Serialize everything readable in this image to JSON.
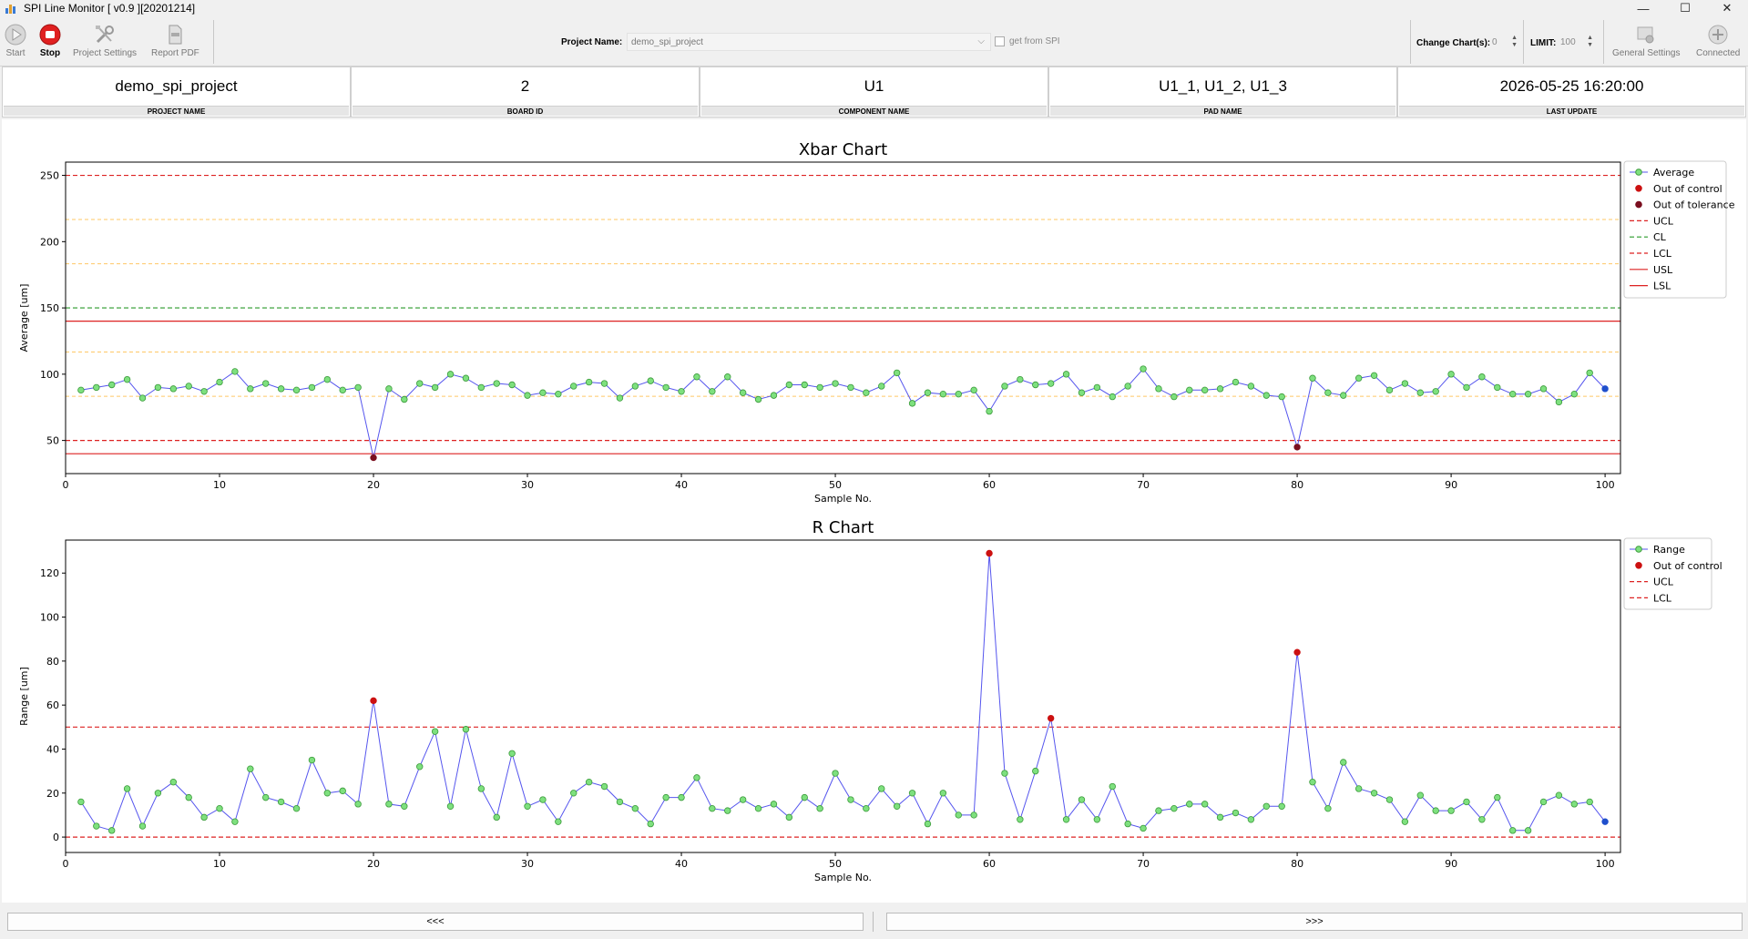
{
  "window": {
    "title": "SPI Line Monitor [ v0.9 ][20201214]",
    "controls": [
      "—",
      "☐",
      "✕"
    ]
  },
  "toolbar": {
    "start_label": "Start",
    "stop_label": "Stop",
    "project_settings_label": "Project Settings",
    "report_pdf_label": "Report PDF",
    "project_name_label": "Project Name:",
    "project_name_value": "demo_spi_project",
    "get_from_spi_label": "get from SPI",
    "change_charts_label": "Change Chart(s):",
    "change_charts_value": "0",
    "limit_label": "LIMIT:",
    "limit_value": "100",
    "general_settings_label": "General Settings",
    "connected_label": "Connected"
  },
  "info": [
    {
      "value": "demo_spi_project",
      "label": "PROJECT NAME"
    },
    {
      "value": "2",
      "label": "BOARD ID"
    },
    {
      "value": "U1",
      "label": "COMPONENT NAME"
    },
    {
      "value": "U1_1, U1_2, U1_3",
      "label": "PAD NAME"
    },
    {
      "value": "2026-05-25 16:20:00",
      "label": "LAST UPDATE"
    }
  ],
  "footer": {
    "prev_label": "<<<",
    "next_label": ">>>"
  },
  "colors": {
    "series_line": "#5555ee",
    "point_fill": "#7ee07e",
    "point_edge": "#3a9a3a",
    "out_of_control": "#cc1111",
    "out_of_tolerance": "#7a0f1f",
    "latest_point": "#1f4fcc",
    "control_limit": "#dd2222",
    "center_line": "#2a9a2a",
    "spec_limit": "#dd2222",
    "zone_line": "#ffc866"
  },
  "chart_data": [
    {
      "type": "line",
      "title": "Xbar Chart",
      "xlabel": "Sample No.",
      "ylabel": "Average [um]",
      "xlim": [
        0,
        101
      ],
      "ylim": [
        25,
        260
      ],
      "x_ticks": [
        0,
        10,
        20,
        30,
        40,
        50,
        60,
        70,
        80,
        90,
        100
      ],
      "y_ticks": [
        50,
        100,
        150,
        200,
        250
      ],
      "legend_position": "outside-right",
      "legend": [
        "Average",
        "Out of control",
        "Out of tolerance",
        "UCL",
        "CL",
        "LCL",
        "USL",
        "LSL"
      ],
      "lines": {
        "UCL": 250,
        "CL": 150,
        "LCL": 50,
        "USL": 140,
        "LSL": 40
      },
      "zones": [
        216.7,
        183.3,
        116.7,
        83.3
      ],
      "x": [
        1,
        2,
        3,
        4,
        5,
        6,
        7,
        8,
        9,
        10,
        11,
        12,
        13,
        14,
        15,
        16,
        17,
        18,
        19,
        20,
        21,
        22,
        23,
        24,
        25,
        26,
        27,
        28,
        29,
        30,
        31,
        32,
        33,
        34,
        35,
        36,
        37,
        38,
        39,
        40,
        41,
        42,
        43,
        44,
        45,
        46,
        47,
        48,
        49,
        50,
        51,
        52,
        53,
        54,
        55,
        56,
        57,
        58,
        59,
        60,
        61,
        62,
        63,
        64,
        65,
        66,
        67,
        68,
        69,
        70,
        71,
        72,
        73,
        74,
        75,
        76,
        77,
        78,
        79,
        80,
        81,
        82,
        83,
        84,
        85,
        86,
        87,
        88,
        89,
        90,
        91,
        92,
        93,
        94,
        95,
        96,
        97,
        98,
        99,
        100
      ],
      "values": [
        88,
        90,
        92,
        96,
        82,
        90,
        89,
        91,
        87,
        94,
        102,
        89,
        93,
        89,
        88,
        90,
        96,
        88,
        90,
        37,
        89,
        81,
        93,
        90,
        100,
        97,
        90,
        93,
        92,
        84,
        86,
        85,
        91,
        94,
        93,
        82,
        91,
        95,
        90,
        87,
        98,
        87,
        98,
        86,
        81,
        84,
        92,
        92,
        90,
        93,
        90,
        86,
        91,
        101,
        78,
        86,
        85,
        85,
        88,
        72,
        91,
        96,
        92,
        93,
        100,
        86,
        90,
        83,
        91,
        104,
        89,
        83,
        88,
        88,
        89,
        94,
        91,
        84,
        83,
        45,
        97,
        86,
        84,
        97,
        99,
        88,
        93,
        86,
        87,
        100,
        90,
        98,
        90,
        85,
        85,
        89,
        79,
        85,
        101,
        89
      ],
      "out_of_control_x": [],
      "out_of_tolerance_x": [
        20,
        80
      ],
      "latest_x": 100
    },
    {
      "type": "line",
      "title": "R Chart",
      "xlabel": "Sample No.",
      "ylabel": "Range [um]",
      "xlim": [
        0,
        101
      ],
      "ylim": [
        -7,
        135
      ],
      "x_ticks": [
        0,
        10,
        20,
        30,
        40,
        50,
        60,
        70,
        80,
        90,
        100
      ],
      "y_ticks": [
        0,
        20,
        40,
        60,
        80,
        100,
        120
      ],
      "legend_position": "outside-right",
      "legend": [
        "Range",
        "Out of control",
        "UCL",
        "LCL"
      ],
      "lines": {
        "UCL": 50,
        "LCL": 0
      },
      "zones": [],
      "x": [
        1,
        2,
        3,
        4,
        5,
        6,
        7,
        8,
        9,
        10,
        11,
        12,
        13,
        14,
        15,
        16,
        17,
        18,
        19,
        20,
        21,
        22,
        23,
        24,
        25,
        26,
        27,
        28,
        29,
        30,
        31,
        32,
        33,
        34,
        35,
        36,
        37,
        38,
        39,
        40,
        41,
        42,
        43,
        44,
        45,
        46,
        47,
        48,
        49,
        50,
        51,
        52,
        53,
        54,
        55,
        56,
        57,
        58,
        59,
        60,
        61,
        62,
        63,
        64,
        65,
        66,
        67,
        68,
        69,
        70,
        71,
        72,
        73,
        74,
        75,
        76,
        77,
        78,
        79,
        80,
        81,
        82,
        83,
        84,
        85,
        86,
        87,
        88,
        89,
        90,
        91,
        92,
        93,
        94,
        95,
        96,
        97,
        98,
        99,
        100
      ],
      "values": [
        16,
        5,
        3,
        22,
        5,
        20,
        25,
        18,
        9,
        13,
        7,
        31,
        18,
        16,
        13,
        35,
        20,
        21,
        15,
        62,
        15,
        14,
        32,
        48,
        14,
        49,
        22,
        9,
        38,
        14,
        17,
        7,
        20,
        25,
        23,
        16,
        13,
        6,
        18,
        18,
        27,
        13,
        12,
        17,
        13,
        15,
        9,
        18,
        13,
        29,
        17,
        13,
        22,
        14,
        20,
        6,
        20,
        10,
        10,
        129,
        29,
        8,
        30,
        54,
        8,
        17,
        8,
        23,
        6,
        4,
        12,
        13,
        15,
        15,
        9,
        11,
        8,
        14,
        14,
        84,
        25,
        13,
        34,
        22,
        20,
        17,
        7,
        19,
        12,
        12,
        16,
        8,
        18,
        3,
        3,
        16,
        19,
        15,
        16,
        7
      ],
      "out_of_control_x": [
        20,
        60,
        64,
        80
      ],
      "out_of_tolerance_x": [],
      "latest_x": 100
    }
  ]
}
